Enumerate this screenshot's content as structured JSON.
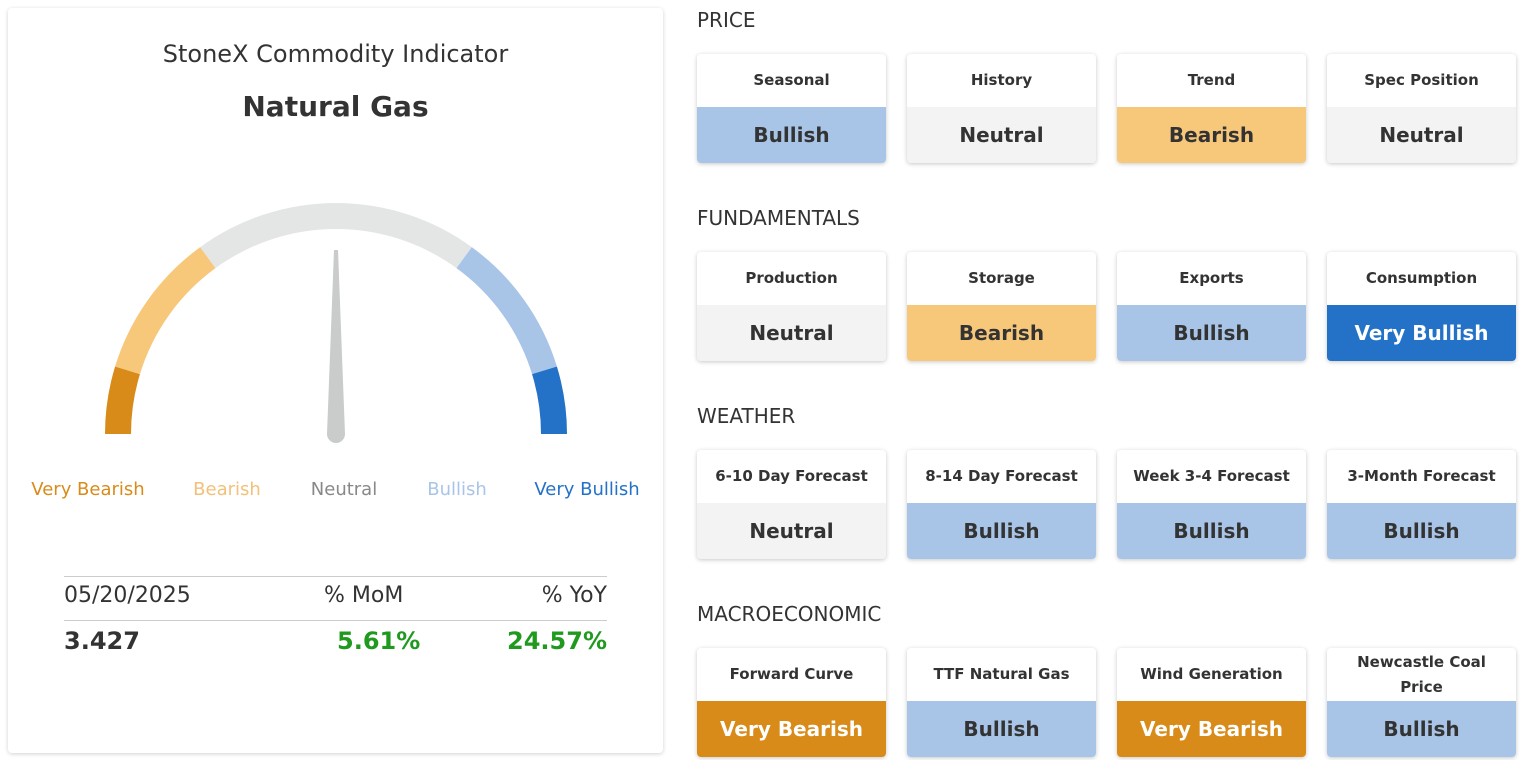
{
  "widget": {
    "title": "StoneX Commodity Indicator",
    "subtitle": "Natural Gas",
    "levels": [
      {
        "label": "Very Bearish",
        "color": "#d98b1a"
      },
      {
        "label": "Bearish",
        "color": "#f7c77a"
      },
      {
        "label": "Neutral",
        "color": "#e4e6e5"
      },
      {
        "label": "Bullish",
        "color": "#a8c5e8"
      },
      {
        "label": "Very Bullish",
        "color": "#2472c8"
      }
    ],
    "stats": {
      "headers": [
        "05/20/2025",
        "% MoM",
        "% YoY"
      ],
      "values": [
        "3.427",
        "5.61%",
        "24.57%"
      ]
    }
  },
  "sections": [
    {
      "title": "PRICE",
      "cards": [
        {
          "label": "Seasonal",
          "signal": "Bullish"
        },
        {
          "label": "History",
          "signal": "Neutral"
        },
        {
          "label": "Trend",
          "signal": "Bearish"
        },
        {
          "label": "Spec Position",
          "signal": "Neutral"
        }
      ]
    },
    {
      "title": "FUNDAMENTALS",
      "cards": [
        {
          "label": "Production",
          "signal": "Neutral"
        },
        {
          "label": "Storage",
          "signal": "Bearish"
        },
        {
          "label": "Exports",
          "signal": "Bullish"
        },
        {
          "label": "Consumption",
          "signal": "Very Bullish"
        }
      ]
    },
    {
      "title": "WEATHER",
      "cards": [
        {
          "label": "6-10 Day Forecast",
          "signal": "Neutral"
        },
        {
          "label": "8-14 Day Forecast",
          "signal": "Bullish"
        },
        {
          "label": "Week 3-4 Forecast",
          "signal": "Bullish"
        },
        {
          "label": "3-Month Forecast",
          "signal": "Bullish"
        }
      ]
    },
    {
      "title": "MACROECONOMIC",
      "cards": [
        {
          "label": "Forward Curve",
          "signal": "Very Bearish"
        },
        {
          "label": "TTF Natural Gas",
          "signal": "Bullish"
        },
        {
          "label": "Wind Generation",
          "signal": "Very Bearish"
        },
        {
          "label": "Newcastle Coal Price",
          "signal": "Bullish"
        }
      ]
    }
  ]
}
